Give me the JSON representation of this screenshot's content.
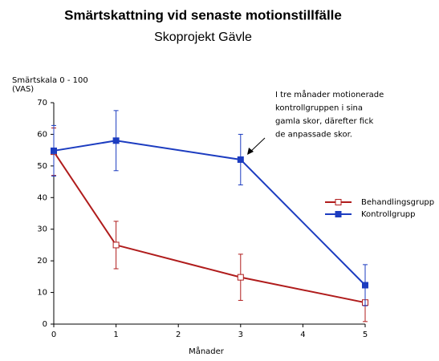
{
  "chart_data": {
    "type": "line",
    "title": "Smärtskattning vid senaste motionstillfälle",
    "subtitle": "Skoprojekt Gävle",
    "y_label": [
      "Smärtskala 0 - 100",
      "(VAS)"
    ],
    "x_label": "Månader",
    "annotation": [
      "I tre månader motionerade",
      "kontrollgruppen i sina",
      "gamla skor, därefter fick",
      "de anpassade skor."
    ],
    "xlim": [
      0,
      5
    ],
    "xticks": [
      0,
      1,
      2,
      3,
      4,
      5
    ],
    "ylim": [
      0,
      70
    ],
    "yticks": [
      0,
      10,
      20,
      30,
      40,
      50,
      60,
      70
    ],
    "x": [
      0,
      1,
      3,
      5
    ],
    "series": [
      {
        "name": "Behandlingsgrupp",
        "color": "#b01c1c",
        "marker": "hollow-square",
        "values": [
          54.5,
          25,
          14.8,
          6.8
        ],
        "errors": [
          7.5,
          7.5,
          7.3,
          6
        ]
      },
      {
        "name": "Kontrollgrupp",
        "color": "#1c3cc0",
        "marker": "filled-square",
        "values": [
          54.8,
          58,
          52,
          12.3
        ],
        "errors": [
          8,
          9.5,
          8,
          6.5
        ]
      }
    ],
    "legend": "right"
  }
}
